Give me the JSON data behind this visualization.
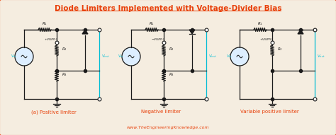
{
  "title": "Diode Limiters Implemented with Voltage-Divider Bias",
  "title_color": "#e8400a",
  "bg_color": "#f5ede0",
  "border_color": "#e8400a",
  "circuit_color": "#1a1a1a",
  "cyan_color": "#00bcd4",
  "label_color": "#e8400a",
  "website": "www.TheEngineeringKnowledge.com",
  "caption1": "(a) Positive limiter",
  "caption2": "Negative limiter",
  "caption3": "Variable positive limiter"
}
